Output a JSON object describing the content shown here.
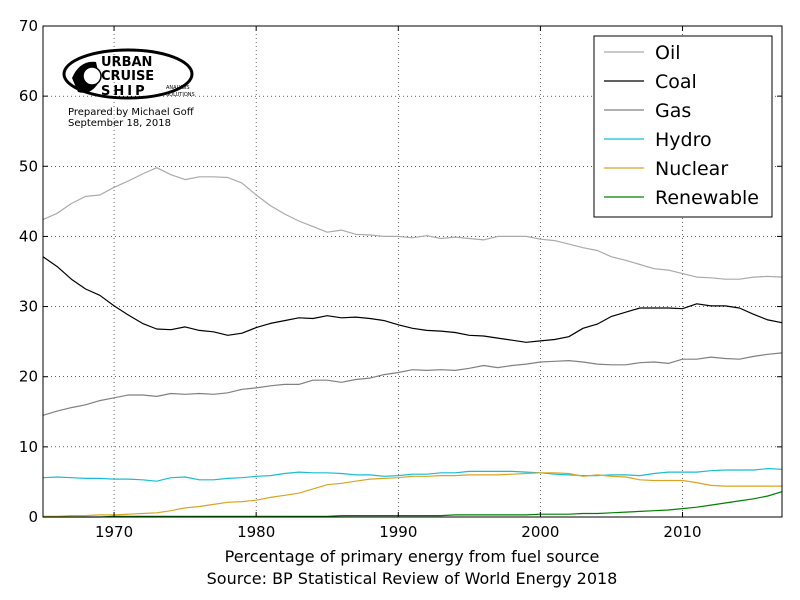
{
  "chart_data": {
    "type": "line",
    "title": "",
    "xlabel": "Percentage of primary energy from fuel source",
    "source": "Source: BP Statistical Review of World Energy 2018",
    "ylabel": "",
    "xlim": [
      1965,
      2017
    ],
    "ylim": [
      0,
      70
    ],
    "xticks": [
      1970,
      1980,
      1990,
      2000,
      2010
    ],
    "yticks": [
      0,
      10,
      20,
      30,
      40,
      50,
      60,
      70
    ],
    "grid": true,
    "legend_position": "top-right",
    "x": [
      1965,
      1966,
      1967,
      1968,
      1969,
      1970,
      1971,
      1972,
      1973,
      1974,
      1975,
      1976,
      1977,
      1978,
      1979,
      1980,
      1981,
      1982,
      1983,
      1984,
      1985,
      1986,
      1987,
      1988,
      1989,
      1990,
      1991,
      1992,
      1993,
      1994,
      1995,
      1996,
      1997,
      1998,
      1999,
      2000,
      2001,
      2002,
      2003,
      2004,
      2005,
      2006,
      2007,
      2008,
      2009,
      2010,
      2011,
      2012,
      2013,
      2014,
      2015,
      2016,
      2017
    ],
    "series": [
      {
        "name": "Oil",
        "color": "#aaaaaa",
        "values": [
          42.4,
          43.3,
          44.7,
          45.7,
          45.9,
          47.0,
          47.9,
          48.9,
          49.8,
          48.8,
          48.1,
          48.5,
          48.5,
          48.4,
          47.6,
          45.9,
          44.4,
          43.2,
          42.2,
          41.4,
          40.6,
          40.9,
          40.3,
          40.2,
          40.0,
          40.0,
          39.8,
          40.1,
          39.7,
          39.9,
          39.7,
          39.5,
          40.0,
          40.0,
          40.0,
          39.6,
          39.4,
          38.9,
          38.4,
          38.0,
          37.1,
          36.6,
          36.0,
          35.4,
          35.2,
          34.7,
          34.2,
          34.1,
          33.9,
          33.9,
          34.2,
          34.3,
          34.2
        ]
      },
      {
        "name": "Coal",
        "color": "#000000",
        "values": [
          37.1,
          35.7,
          33.9,
          32.5,
          31.6,
          30.1,
          28.8,
          27.6,
          26.8,
          26.7,
          27.1,
          26.6,
          26.4,
          25.9,
          26.2,
          27.0,
          27.6,
          28.0,
          28.4,
          28.3,
          28.7,
          28.4,
          28.5,
          28.3,
          28.0,
          27.4,
          26.9,
          26.6,
          26.5,
          26.3,
          25.9,
          25.8,
          25.5,
          25.2,
          24.9,
          25.1,
          25.3,
          25.7,
          26.9,
          27.5,
          28.6,
          29.2,
          29.8,
          29.8,
          29.8,
          29.7,
          30.4,
          30.1,
          30.1,
          29.8,
          28.9,
          28.1,
          27.7
        ]
      },
      {
        "name": "Gas",
        "color": "#808080",
        "values": [
          14.5,
          15.1,
          15.6,
          16.0,
          16.6,
          17.0,
          17.4,
          17.4,
          17.2,
          17.6,
          17.5,
          17.6,
          17.5,
          17.7,
          18.2,
          18.4,
          18.7,
          18.9,
          18.9,
          19.5,
          19.5,
          19.2,
          19.6,
          19.8,
          20.3,
          20.6,
          21.0,
          20.9,
          21.0,
          20.9,
          21.2,
          21.6,
          21.3,
          21.6,
          21.8,
          22.1,
          22.2,
          22.3,
          22.1,
          21.8,
          21.7,
          21.7,
          22.0,
          22.1,
          21.9,
          22.5,
          22.5,
          22.8,
          22.6,
          22.5,
          22.9,
          23.2,
          23.4
        ]
      },
      {
        "name": "Hydro",
        "color": "#17becf",
        "values": [
          5.6,
          5.7,
          5.6,
          5.5,
          5.5,
          5.4,
          5.4,
          5.3,
          5.1,
          5.6,
          5.7,
          5.3,
          5.3,
          5.5,
          5.6,
          5.8,
          5.9,
          6.2,
          6.4,
          6.3,
          6.3,
          6.2,
          6.0,
          6.0,
          5.8,
          5.9,
          6.1,
          6.1,
          6.3,
          6.3,
          6.5,
          6.5,
          6.5,
          6.5,
          6.4,
          6.3,
          6.1,
          6.0,
          5.9,
          5.9,
          6.0,
          6.0,
          5.9,
          6.2,
          6.4,
          6.4,
          6.4,
          6.6,
          6.7,
          6.7,
          6.7,
          6.9,
          6.8
        ]
      },
      {
        "name": "Nuclear",
        "color": "#daa520",
        "values": [
          0.1,
          0.1,
          0.2,
          0.2,
          0.3,
          0.3,
          0.4,
          0.5,
          0.6,
          0.9,
          1.3,
          1.5,
          1.8,
          2.1,
          2.2,
          2.4,
          2.8,
          3.1,
          3.4,
          4.0,
          4.6,
          4.8,
          5.1,
          5.4,
          5.5,
          5.6,
          5.8,
          5.8,
          5.9,
          5.9,
          6.0,
          6.0,
          6.0,
          6.1,
          6.2,
          6.3,
          6.3,
          6.2,
          5.8,
          6.0,
          5.8,
          5.7,
          5.3,
          5.2,
          5.2,
          5.2,
          4.9,
          4.5,
          4.4,
          4.4,
          4.4,
          4.4,
          4.4
        ]
      },
      {
        "name": "Renewable",
        "color": "#008000",
        "values": [
          0.0,
          0.0,
          0.0,
          0.0,
          0.0,
          0.1,
          0.1,
          0.1,
          0.1,
          0.1,
          0.1,
          0.1,
          0.1,
          0.1,
          0.1,
          0.1,
          0.1,
          0.1,
          0.1,
          0.1,
          0.1,
          0.2,
          0.2,
          0.2,
          0.2,
          0.2,
          0.2,
          0.2,
          0.2,
          0.3,
          0.3,
          0.3,
          0.3,
          0.3,
          0.3,
          0.4,
          0.4,
          0.4,
          0.5,
          0.5,
          0.6,
          0.7,
          0.8,
          0.9,
          1.0,
          1.2,
          1.4,
          1.7,
          2.0,
          2.3,
          2.6,
          3.0,
          3.6
        ]
      }
    ]
  },
  "logo": {
    "line1": "URBAN",
    "line2": "CRUISE",
    "line3": "SHIP",
    "tag1": "ANALYSIS",
    "tag2": "SOLUTIONS"
  },
  "prepared_by": "Prepared by Michael Goff",
  "prepared_date": "September 18, 2018"
}
